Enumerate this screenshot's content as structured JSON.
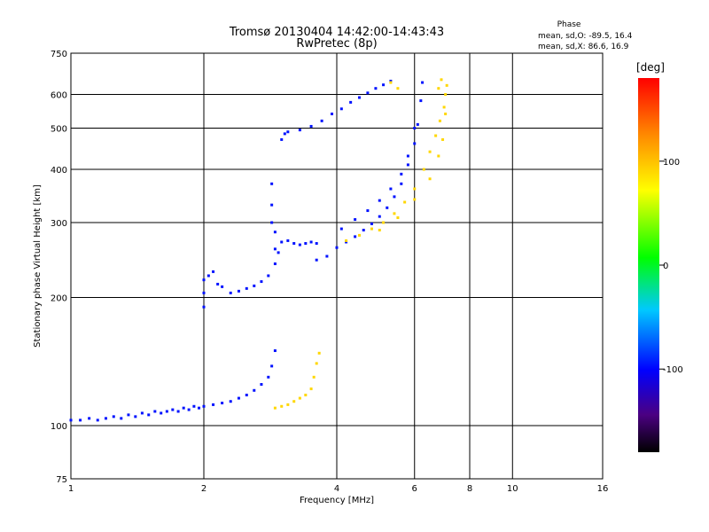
{
  "chart_data": {
    "type": "scatter",
    "title": "Tromsø 20130404 14:42:00-14:43:43",
    "subtitle": "RwPretec (8p)",
    "xlabel": "Frequency [MHz]",
    "ylabel": "Stationary phase Virtual Height [km]",
    "x_scale": "log",
    "y_scale": "log",
    "xlim": [
      1,
      16
    ],
    "ylim": [
      75,
      750
    ],
    "grid": true,
    "x_ticks": [
      1,
      2,
      4,
      6,
      8,
      10,
      16
    ],
    "x_tick_labels": [
      "1",
      "2",
      "4",
      "6",
      "8",
      "10",
      "16"
    ],
    "y_ticks": [
      75,
      100,
      200,
      300,
      400,
      500,
      600,
      750
    ],
    "y_tick_labels": [
      "75",
      "100",
      "200",
      "300",
      "400",
      "500",
      "600",
      "750"
    ],
    "phase_info": {
      "heading": "Phase",
      "line_o": "mean, sd,O: -89.5, 16.4",
      "line_x": "mean, sd,X:  86.6, 16.9"
    },
    "colorbar": {
      "label": "[deg]",
      "range": [
        -180,
        180
      ],
      "ticks": [
        100,
        0,
        -100
      ],
      "tick_labels": [
        "100",
        "0",
        "-100"
      ]
    },
    "series": [
      {
        "mode": "O",
        "phase": -95,
        "points": [
          [
            1.0,
            103
          ],
          [
            1.05,
            103
          ],
          [
            1.1,
            104
          ],
          [
            1.15,
            103
          ],
          [
            1.2,
            104
          ],
          [
            1.25,
            105
          ],
          [
            1.3,
            104
          ],
          [
            1.35,
            106
          ],
          [
            1.4,
            105
          ],
          [
            1.45,
            107
          ],
          [
            1.5,
            106
          ],
          [
            1.55,
            108
          ],
          [
            1.6,
            107
          ],
          [
            1.65,
            108
          ],
          [
            1.7,
            109
          ],
          [
            1.75,
            108
          ],
          [
            1.8,
            110
          ],
          [
            1.85,
            109
          ],
          [
            1.9,
            111
          ],
          [
            1.95,
            110
          ],
          [
            2.0,
            111
          ],
          [
            2.1,
            112
          ],
          [
            2.2,
            113
          ],
          [
            2.3,
            114
          ],
          [
            2.4,
            116
          ],
          [
            2.5,
            118
          ],
          [
            2.6,
            121
          ],
          [
            2.7,
            125
          ],
          [
            2.8,
            130
          ],
          [
            2.85,
            138
          ],
          [
            2.9,
            150
          ],
          [
            2.0,
            190
          ],
          [
            2.0,
            205
          ],
          [
            2.0,
            220
          ],
          [
            2.05,
            225
          ],
          [
            2.1,
            230
          ],
          [
            2.15,
            215
          ],
          [
            2.2,
            212
          ],
          [
            2.3,
            205
          ],
          [
            2.4,
            207
          ],
          [
            2.5,
            210
          ],
          [
            2.6,
            213
          ],
          [
            2.7,
            218
          ],
          [
            2.8,
            225
          ],
          [
            2.9,
            240
          ],
          [
            2.95,
            255
          ],
          [
            3.0,
            270
          ],
          [
            3.1,
            272
          ],
          [
            3.2,
            268
          ],
          [
            3.3,
            266
          ],
          [
            3.4,
            268
          ],
          [
            3.5,
            270
          ],
          [
            3.6,
            268
          ],
          [
            2.85,
            300
          ],
          [
            2.85,
            330
          ],
          [
            2.85,
            370
          ],
          [
            2.9,
            285
          ],
          [
            2.9,
            260
          ],
          [
            3.0,
            470
          ],
          [
            3.05,
            485
          ],
          [
            3.1,
            490
          ],
          [
            3.3,
            495
          ],
          [
            3.5,
            505
          ],
          [
            3.7,
            520
          ],
          [
            3.9,
            540
          ],
          [
            4.1,
            555
          ],
          [
            4.3,
            575
          ],
          [
            4.5,
            590
          ],
          [
            4.7,
            605
          ],
          [
            4.9,
            620
          ],
          [
            5.1,
            632
          ],
          [
            5.3,
            645
          ],
          [
            3.6,
            245
          ],
          [
            3.8,
            250
          ],
          [
            4.0,
            262
          ],
          [
            4.2,
            270
          ],
          [
            4.4,
            278
          ],
          [
            4.6,
            288
          ],
          [
            4.8,
            298
          ],
          [
            5.0,
            310
          ],
          [
            5.2,
            325
          ],
          [
            5.4,
            345
          ],
          [
            5.6,
            370
          ],
          [
            5.8,
            410
          ],
          [
            6.0,
            460
          ],
          [
            6.1,
            510
          ],
          [
            6.2,
            580
          ],
          [
            6.25,
            640
          ],
          [
            4.1,
            290
          ],
          [
            4.4,
            305
          ],
          [
            4.7,
            320
          ],
          [
            5.0,
            338
          ],
          [
            5.3,
            360
          ],
          [
            5.6,
            390
          ],
          [
            5.8,
            430
          ],
          [
            6.0,
            500
          ]
        ]
      },
      {
        "mode": "X",
        "phase": 90,
        "points": [
          [
            2.9,
            110
          ],
          [
            3.0,
            111
          ],
          [
            3.1,
            112
          ],
          [
            3.2,
            114
          ],
          [
            3.3,
            116
          ],
          [
            3.4,
            118
          ],
          [
            3.5,
            122
          ],
          [
            3.55,
            130
          ],
          [
            3.6,
            140
          ],
          [
            3.65,
            148
          ],
          [
            4.2,
            272
          ],
          [
            4.5,
            280
          ],
          [
            4.8,
            290
          ],
          [
            5.1,
            300
          ],
          [
            5.4,
            315
          ],
          [
            5.7,
            335
          ],
          [
            6.0,
            360
          ],
          [
            6.3,
            400
          ],
          [
            6.5,
            440
          ],
          [
            6.7,
            480
          ],
          [
            6.85,
            520
          ],
          [
            7.0,
            560
          ],
          [
            7.05,
            600
          ],
          [
            7.1,
            630
          ],
          [
            5.0,
            288
          ],
          [
            5.5,
            308
          ],
          [
            6.0,
            340
          ],
          [
            6.5,
            380
          ],
          [
            6.8,
            430
          ],
          [
            6.95,
            470
          ],
          [
            7.05,
            540
          ],
          [
            5.3,
            640
          ],
          [
            5.5,
            620
          ],
          [
            6.8,
            620
          ],
          [
            6.9,
            650
          ]
        ]
      }
    ]
  }
}
